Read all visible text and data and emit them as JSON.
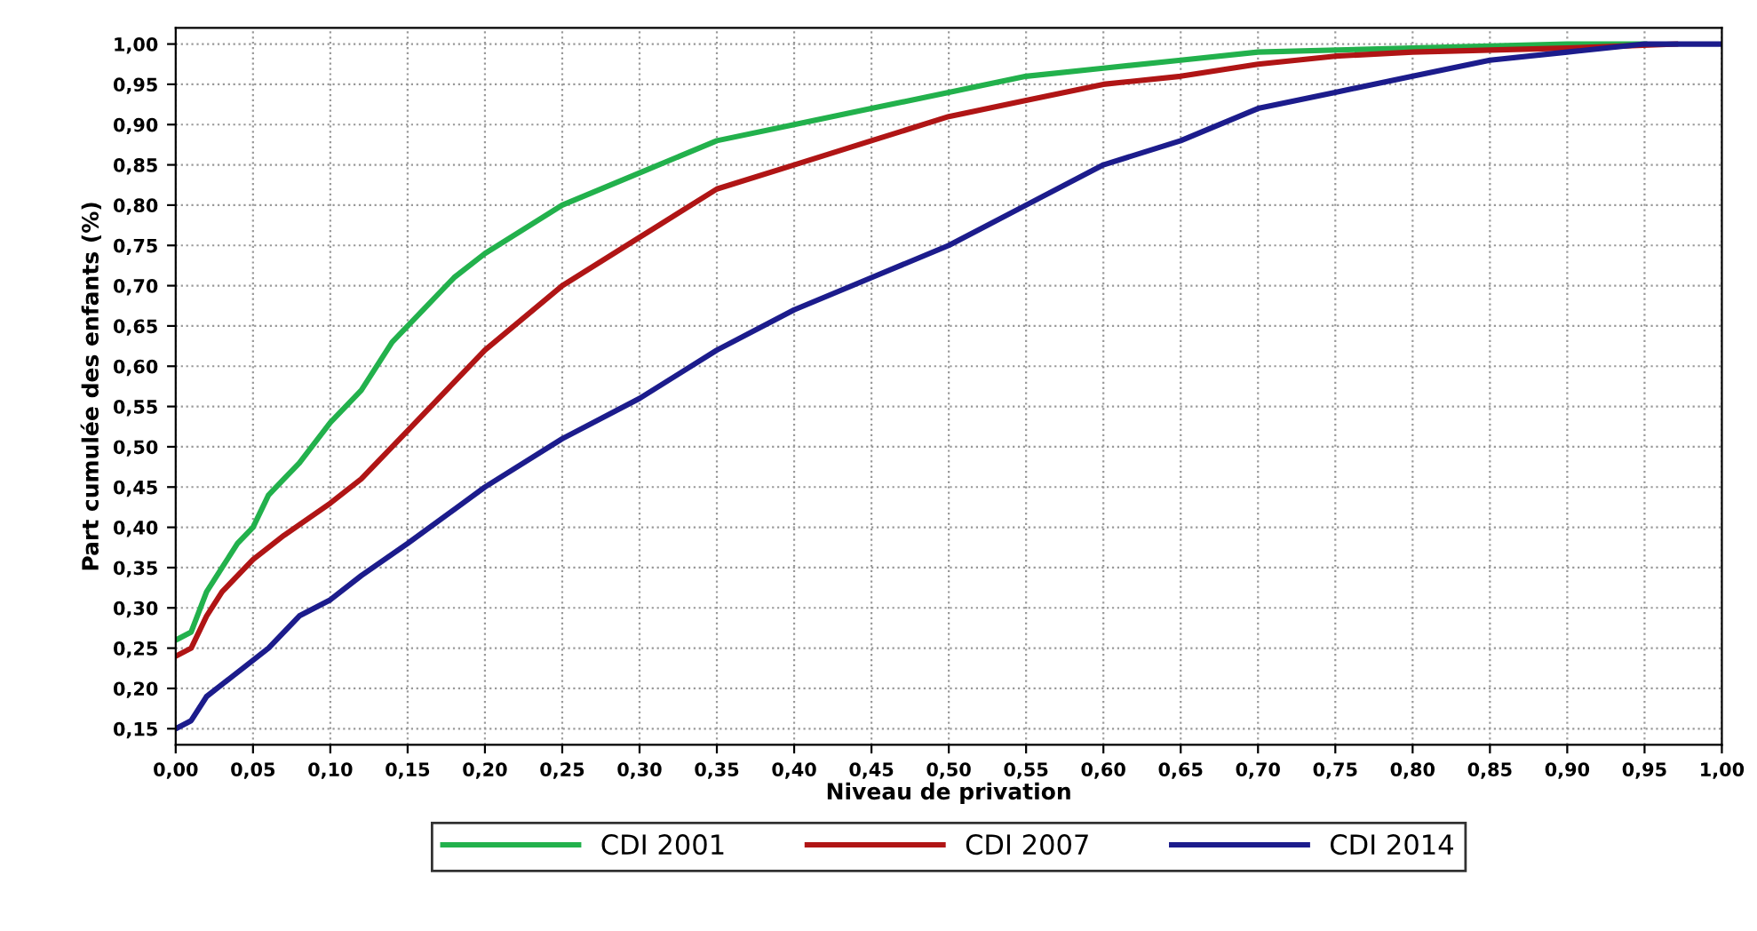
{
  "chart_data": {
    "type": "line",
    "xlabel": "Niveau de privation",
    "ylabel": "Part cumulée des enfants (%)",
    "xlim": [
      0,
      1
    ],
    "ylim": [
      0.13,
      1.02
    ],
    "xticks": [
      {
        "value": 0,
        "label": "0,00"
      },
      {
        "value": 0.05,
        "label": "0,05"
      },
      {
        "value": 0.1,
        "label": "0,10"
      },
      {
        "value": 0.15,
        "label": "0,15"
      },
      {
        "value": 0.2,
        "label": "0,20"
      },
      {
        "value": 0.25,
        "label": "0,25"
      },
      {
        "value": 0.3,
        "label": "0,30"
      },
      {
        "value": 0.35,
        "label": "0,35"
      },
      {
        "value": 0.4,
        "label": "0,40"
      },
      {
        "value": 0.45,
        "label": "0,45"
      },
      {
        "value": 0.5,
        "label": "0,50"
      },
      {
        "value": 0.55,
        "label": "0,55"
      },
      {
        "value": 0.6,
        "label": "0,60"
      },
      {
        "value": 0.65,
        "label": "0,65"
      },
      {
        "value": 0.7,
        "label": "0,70"
      },
      {
        "value": 0.75,
        "label": "0,75"
      },
      {
        "value": 0.8,
        "label": "0,80"
      },
      {
        "value": 0.85,
        "label": "0,85"
      },
      {
        "value": 0.9,
        "label": "0,90"
      },
      {
        "value": 0.95,
        "label": "0,95"
      },
      {
        "value": 1,
        "label": "1,00"
      }
    ],
    "yticks": [
      {
        "value": 0.15,
        "label": "0,15"
      },
      {
        "value": 0.2,
        "label": "0,20"
      },
      {
        "value": 0.25,
        "label": "0,25"
      },
      {
        "value": 0.3,
        "label": "0,30"
      },
      {
        "value": 0.35,
        "label": "0,35"
      },
      {
        "value": 0.4,
        "label": "0,40"
      },
      {
        "value": 0.45,
        "label": "0,45"
      },
      {
        "value": 0.5,
        "label": "0,50"
      },
      {
        "value": 0.55,
        "label": "0,55"
      },
      {
        "value": 0.6,
        "label": "0,60"
      },
      {
        "value": 0.65,
        "label": "0,65"
      },
      {
        "value": 0.7,
        "label": "0,70"
      },
      {
        "value": 0.75,
        "label": "0,75"
      },
      {
        "value": 0.8,
        "label": "0,80"
      },
      {
        "value": 0.85,
        "label": "0,85"
      },
      {
        "value": 0.9,
        "label": "0,90"
      },
      {
        "value": 0.95,
        "label": "0,95"
      },
      {
        "value": 1,
        "label": "1,00"
      }
    ],
    "grid": true,
    "legend": "bottom",
    "line_style": "solid",
    "marker": "none",
    "series": [
      {
        "name": "CDI 2001",
        "color": "#22b14c",
        "x": [
          0,
          0.01,
          0.02,
          0.03,
          0.04,
          0.05,
          0.06,
          0.07,
          0.08,
          0.1,
          0.12,
          0.14,
          0.16,
          0.18,
          0.2,
          0.25,
          0.3,
          0.35,
          0.4,
          0.45,
          0.5,
          0.55,
          0.6,
          0.65,
          0.7,
          0.8,
          0.9,
          0.95
        ],
        "values": [
          0.26,
          0.27,
          0.32,
          0.35,
          0.38,
          0.4,
          0.44,
          0.46,
          0.48,
          0.53,
          0.57,
          0.63,
          0.67,
          0.71,
          0.74,
          0.8,
          0.84,
          0.88,
          0.9,
          0.92,
          0.94,
          0.96,
          0.97,
          0.98,
          0.99,
          0.995,
          1.0,
          1.0
        ]
      },
      {
        "name": "CDI 2007",
        "color": "#b01515",
        "x": [
          0,
          0.01,
          0.02,
          0.03,
          0.05,
          0.07,
          0.1,
          0.12,
          0.15,
          0.18,
          0.2,
          0.25,
          0.3,
          0.35,
          0.4,
          0.45,
          0.5,
          0.55,
          0.6,
          0.65,
          0.7,
          0.75,
          0.8,
          0.9,
          0.97
        ],
        "values": [
          0.24,
          0.25,
          0.29,
          0.32,
          0.36,
          0.39,
          0.43,
          0.46,
          0.52,
          0.58,
          0.62,
          0.7,
          0.76,
          0.82,
          0.85,
          0.88,
          0.91,
          0.93,
          0.95,
          0.96,
          0.975,
          0.985,
          0.99,
          0.995,
          1.0
        ]
      },
      {
        "name": "CDI 2014",
        "color": "#1c1c8c",
        "x": [
          0,
          0.01,
          0.02,
          0.04,
          0.06,
          0.08,
          0.1,
          0.12,
          0.15,
          0.2,
          0.25,
          0.3,
          0.35,
          0.4,
          0.45,
          0.5,
          0.55,
          0.6,
          0.65,
          0.7,
          0.75,
          0.8,
          0.85,
          0.9,
          0.95,
          1.0
        ],
        "values": [
          0.15,
          0.16,
          0.19,
          0.22,
          0.25,
          0.29,
          0.31,
          0.34,
          0.38,
          0.45,
          0.51,
          0.56,
          0.62,
          0.67,
          0.71,
          0.75,
          0.8,
          0.85,
          0.88,
          0.92,
          0.94,
          0.96,
          0.98,
          0.99,
          1.0,
          1.0
        ]
      }
    ]
  }
}
